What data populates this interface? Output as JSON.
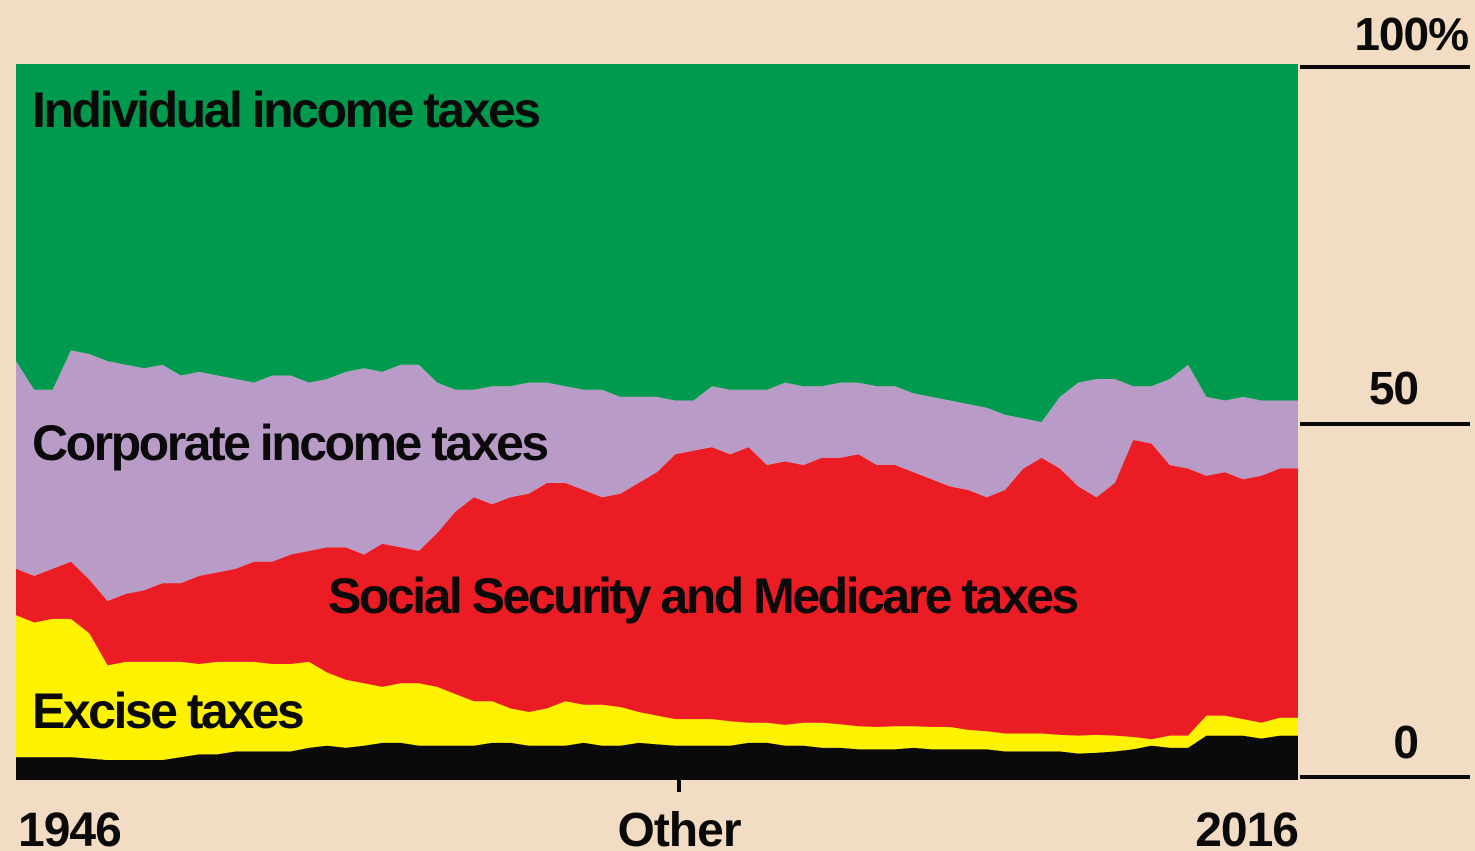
{
  "chart_data": {
    "type": "area",
    "stacked": true,
    "normalized_percent": true,
    "title_fragment": "",
    "x_range": [
      1946,
      2016
    ],
    "x_tick_labels": [
      {
        "value": 1946,
        "label": "1946"
      },
      {
        "value": 1981,
        "label": "Other"
      },
      {
        "value": 2016,
        "label": "2016"
      }
    ],
    "y_range": [
      0,
      100
    ],
    "y_tick_labels": [
      {
        "value": 0,
        "label": "0"
      },
      {
        "value": 50,
        "label": "50"
      },
      {
        "value": 100,
        "label": "100%"
      }
    ],
    "y_axis_side": "right",
    "grid": false,
    "colors": {
      "background": "#f2dcc3",
      "individual": "#009a4e",
      "corporate": "#b99bc8",
      "social": "#ec1c24",
      "excise": "#fff200",
      "other": "#0a0a0a"
    },
    "series_order_bottom_to_top": [
      "Other",
      "Excise taxes",
      "Social Security and Medicare taxes",
      "Corporate income taxes",
      "Individual income taxes"
    ],
    "series_labels": {
      "individual": "Individual income taxes",
      "corporate": "Corporate income taxes",
      "social": "Social Security and Medicare taxes",
      "excise": "Excise taxes"
    },
    "years": [
      1946,
      1947,
      1948,
      1949,
      1950,
      1951,
      1952,
      1953,
      1954,
      1955,
      1956,
      1957,
      1958,
      1959,
      1960,
      1961,
      1962,
      1963,
      1964,
      1965,
      1966,
      1967,
      1968,
      1969,
      1970,
      1971,
      1972,
      1973,
      1974,
      1975,
      1976,
      1977,
      1978,
      1979,
      1980,
      1981,
      1982,
      1983,
      1984,
      1985,
      1986,
      1987,
      1988,
      1989,
      1990,
      1991,
      1992,
      1993,
      1994,
      1995,
      1996,
      1997,
      1998,
      1999,
      2000,
      2001,
      2002,
      2003,
      2004,
      2005,
      2006,
      2007,
      2008,
      2009,
      2010,
      2011,
      2012,
      2013,
      2014,
      2015,
      2016
    ],
    "cumulative_boundaries_percent": {
      "other_top": [
        3.2,
        3.2,
        3.2,
        3.2,
        3.0,
        2.8,
        2.8,
        2.8,
        2.8,
        3.2,
        3.6,
        3.6,
        4.0,
        4.0,
        4.0,
        4.0,
        4.5,
        4.8,
        4.5,
        4.8,
        5.2,
        5.2,
        4.8,
        4.8,
        4.8,
        4.8,
        5.2,
        5.2,
        4.8,
        4.8,
        4.8,
        5.2,
        4.8,
        4.8,
        5.2,
        5.0,
        4.8,
        4.8,
        4.8,
        4.8,
        5.2,
        5.2,
        4.8,
        4.8,
        4.5,
        4.5,
        4.3,
        4.3,
        4.3,
        4.5,
        4.3,
        4.3,
        4.3,
        4.3,
        4.0,
        4.0,
        4.0,
        4.0,
        3.7,
        3.8,
        4.0,
        4.3,
        4.8,
        4.5,
        4.5,
        6.2,
        6.2,
        6.2,
        5.8,
        6.2,
        6.2
      ],
      "excise_top": [
        23.0,
        22.0,
        22.5,
        22.5,
        20.5,
        16.0,
        16.5,
        16.5,
        16.5,
        16.5,
        16.2,
        16.5,
        16.5,
        16.5,
        16.2,
        16.2,
        16.5,
        15.0,
        14.0,
        13.5,
        13.0,
        13.5,
        13.5,
        13.0,
        12.0,
        11.0,
        11.0,
        10.0,
        9.5,
        10.0,
        11.0,
        10.5,
        10.5,
        10.2,
        9.5,
        9.0,
        8.5,
        8.5,
        8.5,
        8.2,
        8.0,
        8.0,
        7.7,
        8.0,
        8.0,
        7.8,
        7.5,
        7.4,
        7.5,
        7.5,
        7.4,
        7.4,
        7.0,
        6.8,
        6.5,
        6.5,
        6.5,
        6.3,
        6.2,
        6.3,
        6.2,
        6.0,
        5.7,
        6.2,
        6.2,
        9.0,
        9.0,
        8.5,
        8.0,
        8.7,
        8.7
      ],
      "social_top": [
        29.5,
        28.5,
        29.5,
        30.5,
        28.0,
        25.0,
        26.0,
        26.5,
        27.5,
        27.5,
        28.5,
        29.0,
        29.5,
        30.5,
        30.5,
        31.5,
        32.0,
        32.5,
        32.5,
        31.5,
        33.0,
        32.5,
        32.0,
        34.5,
        37.5,
        39.5,
        38.5,
        39.5,
        40.0,
        41.5,
        41.5,
        40.5,
        39.5,
        40.0,
        41.5,
        43.0,
        45.5,
        46.0,
        46.5,
        45.5,
        46.5,
        44.0,
        44.5,
        44.0,
        45.0,
        45.0,
        45.5,
        44.0,
        44.0,
        43.0,
        42.0,
        41.0,
        40.5,
        39.5,
        40.5,
        43.5,
        45.0,
        43.5,
        41.0,
        39.5,
        41.5,
        47.5,
        47.0,
        44.0,
        43.5,
        42.5,
        43.0,
        42.0,
        42.5,
        43.5,
        43.5
      ],
      "corporate_top": [
        58.5,
        54.5,
        54.5,
        60.0,
        59.5,
        58.5,
        58.0,
        57.5,
        58.0,
        56.5,
        57.0,
        56.5,
        56.0,
        55.5,
        56.5,
        56.5,
        55.5,
        56.0,
        57.0,
        57.5,
        57.0,
        58.0,
        58.0,
        55.5,
        54.5,
        54.5,
        55.0,
        55.0,
        55.5,
        55.5,
        55.0,
        54.5,
        54.5,
        53.5,
        53.5,
        53.5,
        53.0,
        53.0,
        55.0,
        54.5,
        54.5,
        54.5,
        55.5,
        55.0,
        55.0,
        55.5,
        55.5,
        55.0,
        55.0,
        54.0,
        53.5,
        53.0,
        52.5,
        52.0,
        51.0,
        50.5,
        50.0,
        53.5,
        55.5,
        56.0,
        56.0,
        55.0,
        55.0,
        56.0,
        58.0,
        53.5,
        53.0,
        53.5,
        53.0,
        53.0,
        53.0
      ],
      "individual_top": [
        100,
        100,
        100,
        100,
        100,
        100,
        100,
        100,
        100,
        100,
        100,
        100,
        100,
        100,
        100,
        100,
        100,
        100,
        100,
        100,
        100,
        100,
        100,
        100,
        100,
        100,
        100,
        100,
        100,
        100,
        100,
        100,
        100,
        100,
        100,
        100,
        100,
        100,
        100,
        100,
        100,
        100,
        100,
        100,
        100,
        100,
        100,
        100,
        100,
        100,
        100,
        100,
        100,
        100,
        100,
        100,
        100,
        100,
        100,
        100,
        100,
        100,
        100,
        100,
        100,
        100,
        100,
        100,
        100,
        100,
        100
      ]
    }
  }
}
